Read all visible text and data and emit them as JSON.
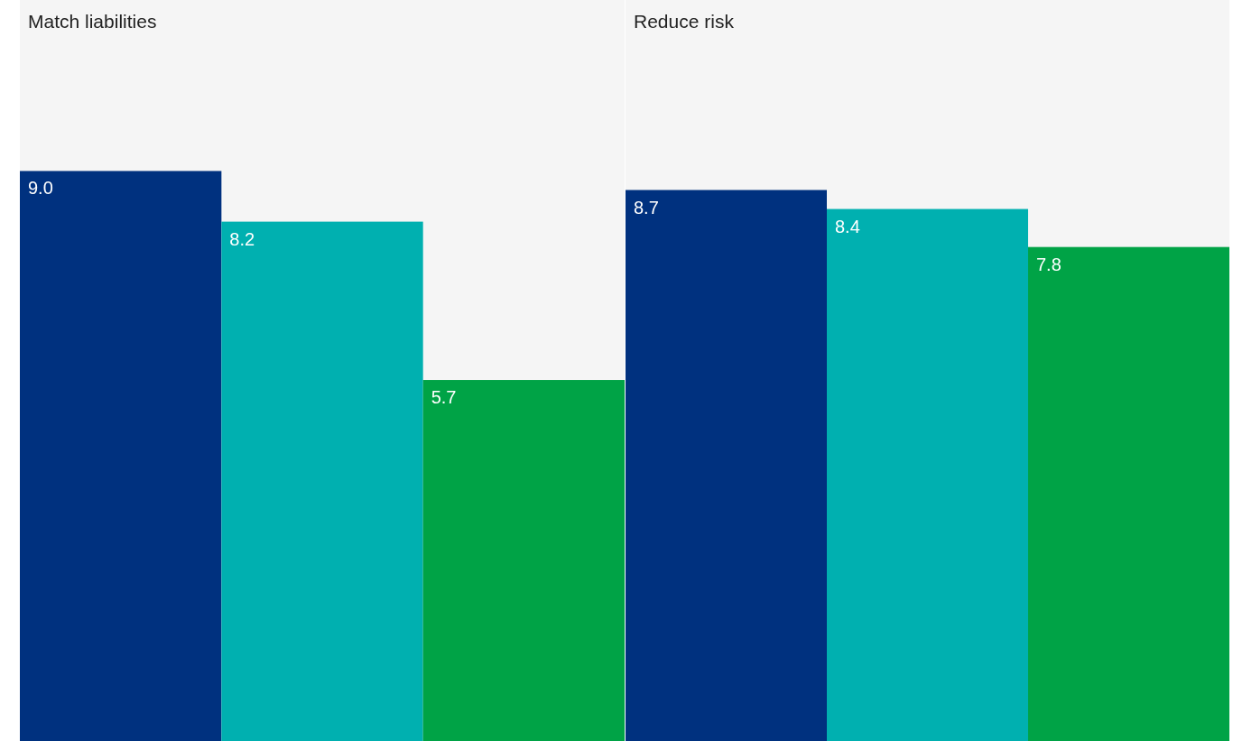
{
  "chart_data": [
    {
      "type": "bar",
      "title": "Match liabilities",
      "categories": [
        null,
        null,
        null
      ],
      "values": [
        9.0,
        8.2,
        5.7
      ],
      "value_labels": [
        "9.0",
        "8.2",
        "5.7"
      ],
      "colors": [
        "#00317f",
        "#00b0b0",
        "#00a346"
      ],
      "ylim": [
        0,
        11.7
      ]
    },
    {
      "type": "bar",
      "title": "Reduce risk",
      "categories": [
        null,
        null,
        null
      ],
      "values": [
        8.7,
        8.4,
        7.8
      ],
      "value_labels": [
        "8.7",
        "8.4",
        "7.8"
      ],
      "colors": [
        "#00317f",
        "#00b0b0",
        "#00a346"
      ],
      "ylim": [
        0,
        11.7
      ]
    }
  ]
}
